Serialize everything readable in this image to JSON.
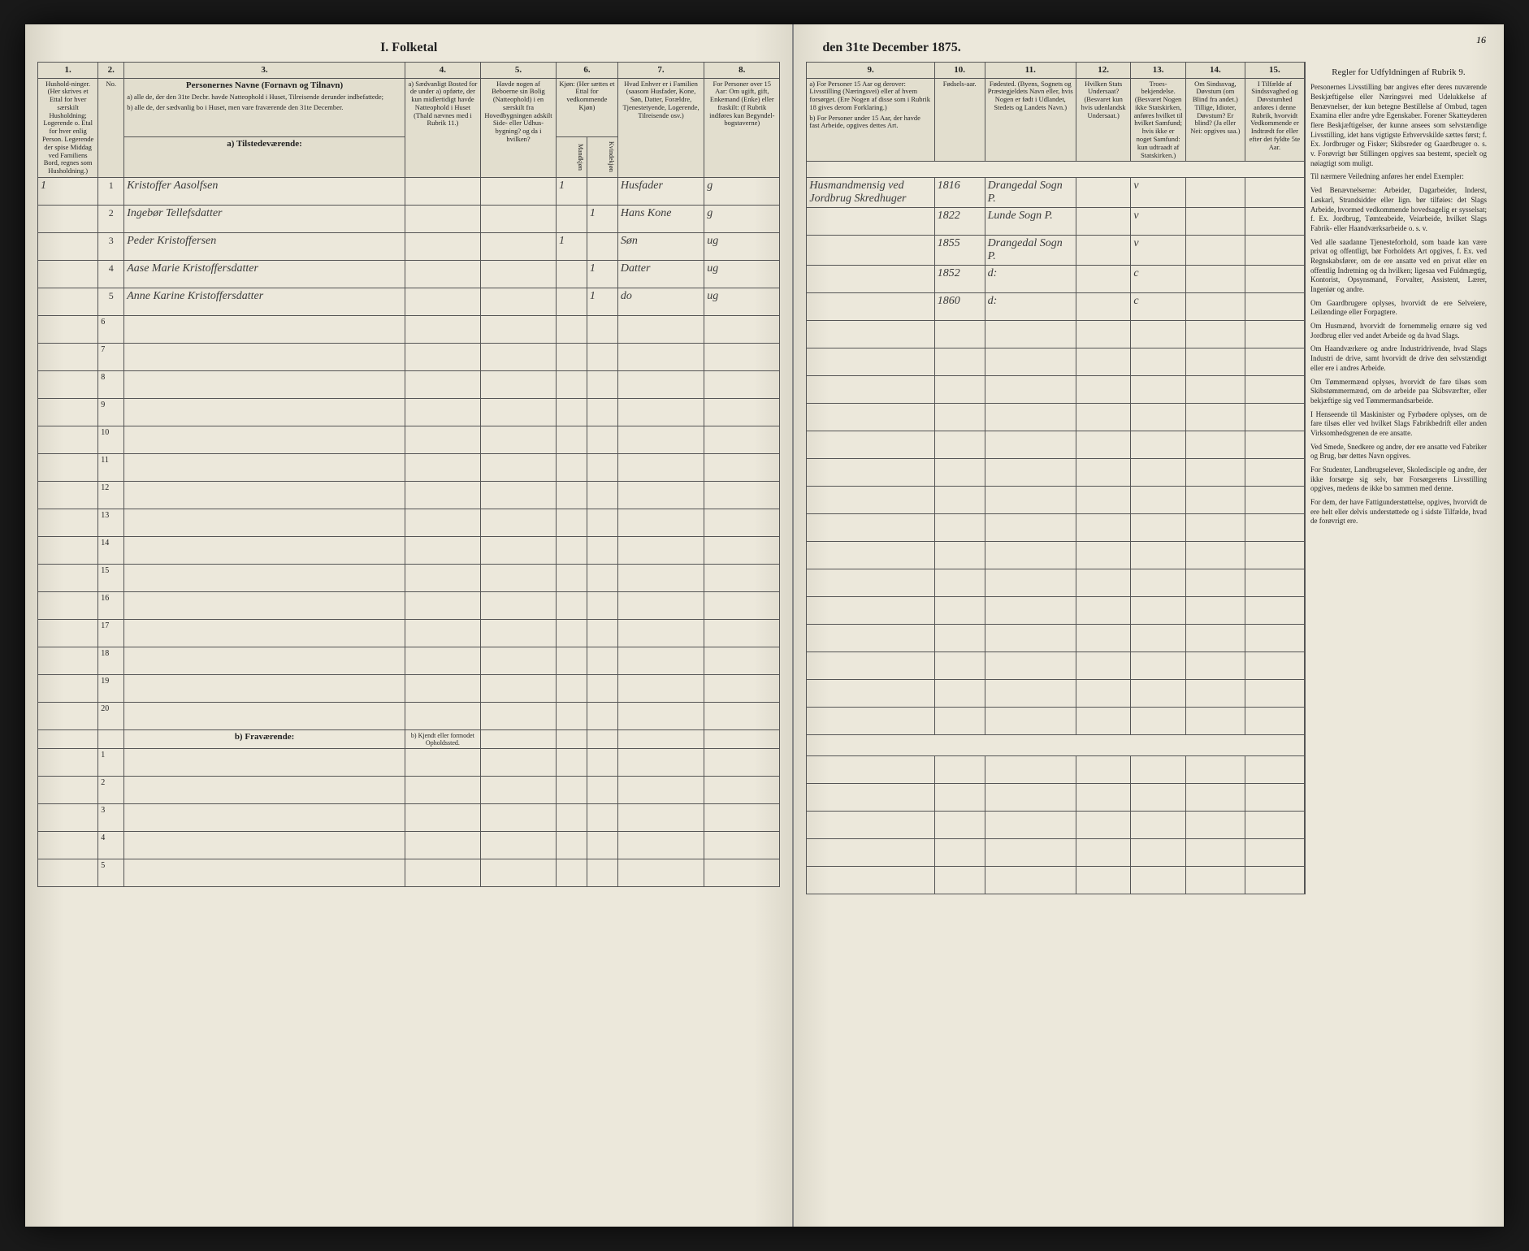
{
  "document": {
    "title_left": "I. Folketal",
    "title_right": "den 31te December 1875.",
    "page_number_right": "16"
  },
  "left_columns": {
    "nums": [
      "1.",
      "2.",
      "3.",
      "4.",
      "5.",
      "6.",
      "7.",
      "8."
    ],
    "c1": "Hushold-ninger. (Her skrives et Ettal for hver særskilt Husholdning; Logerende o. Etal for hver enlig Person. Legerende der spise Middag ved Familiens Bord, regnes som Husholdning.)",
    "c2": "No.",
    "c3_title": "Personernes Navne (Fornavn og Tilnavn)",
    "c3_a": "a) alle de, der den 31te Decbr. havde Natteophold i Huset, Tilreisende derunder indbefattede;",
    "c3_b": "b) alle de, der sædvanlig bo i Huset, men vare fraværende den 31te December.",
    "c4": "a) Sædvanligt Bosted for de under a) opførte, der kun midlertidigt havde Natteophold i Huset (Thald nævnes med i Rubrik 11.)",
    "c5": "Havde nogen af Beboerne sin Bolig (Natteophold) i en særskilt fra Hovedbygningen adskilt Side- eller Udhus-bygning? og da i hvilken?",
    "c6": "Kjøn: (Her sættes et Ettal for vedkommende Kjøn)",
    "c6m": "Mandkjøn",
    "c6k": "Kvindekjøn",
    "c7": "Hvad Enhver er i Familien (saasom Husfader, Kone, Søn, Datter, Forældre, Tjenestetyende, Logerende, Tilreisende osv.)",
    "c8": "For Personer over 15 Aar: Om ugift, gift, Enkemand (Enke) eller fraskilt: (f Rubrik indføres kun Begyndel-bogstaverne)"
  },
  "right_columns": {
    "nums": [
      "9.",
      "10.",
      "11.",
      "12.",
      "13.",
      "14.",
      "15."
    ],
    "c9_a": "a) For Personer 15 Aar og derover: Livsstilling (Næringsvei) eller af hvem forsørget. (Ere Nogen af disse som i Rubrik 18 gives derom Forklaring.)",
    "c9_b": "b) For Personer under 15 Aar, der havde fast Arbeide, opgives dettes Art.",
    "c10": "Fødsels-aar.",
    "c11": "Fødested. (Byens, Sognets og Præstegjeldets Navn eller, hvis Nogen er født i Udlandet, Stedets og Landets Navn.)",
    "c12": "Hvilken Stats Undersaat? (Besvaret kun hvis udenlandsk Undersaat.)",
    "c13": "Troes-bekjendelse. (Besvaret Nogen ikke Statskirken, anføres hvilket til hvilket Samfund; hvis ikke er noget Samfund: kun udtraadt af Statskirken.)",
    "c14": "Om Sindssvag, Døvstum (om Blind fra andet.) Tillige, Idioter, Døvstum? Er blind? (Ja eller Nei: opgives saa.)",
    "c15": "I Tilfælde af Sindssvaghed og Døvstumhed anføres i denne Rubrik, hvorvidt Vedkommende er Indtrædt for eller efter det fyldte 5te Aar."
  },
  "instructions": {
    "header": "Regler for Udfyldningen af Rubrik 9.",
    "paragraphs": [
      "Personernes Livsstilling bør angives efter deres nuværende Beskjæftigelse eller Næringsvei med Udelukkelse af Benævnelser, der kun betegne Bestillelse af Ombud, tagen Examina eller andre ydre Egenskaber. Forener Skatteyderen flere Beskjæftigelser, der kunne ansees som selvstændige Livsstilling, idet hans vigtigste Erhvervskilde sættes først; f. Ex. Jordbruger og Fisker; Skibsreder og Gaardbruger o. s. v. Forøvrigt bør Stillingen opgives saa bestemt, specielt og nøiagtigt som muligt.",
      "Til nærmere Veiledning anføres her endel Exempler:",
      "Ved Benævnelserne: Arbeider, Dagarbeider, Inderst, Løskarl, Strandsidder eller lign. bør tilføies: det Slags Arbeide, hvormed vedkommende hovedsagelig er sysselsat; f. Ex. Jordbrug, Tømteabeide, Veiarbeide, hvilket Slags Fabrik- eller Haandværksarbeide o. s. v.",
      "Ved alle saadanne Tjenesteforhold, som baade kan være privat og offentligt, bør Forholdets Art opgives, f. Ex. ved Regnskabsfører, om de ere ansatte ved en privat eller en offentlig Indretning og da hvilken; ligesaa ved Fuldmægtig, Kontorist, Opsynsmand, Forvalter, Assistent, Lærer, Ingeniør og andre.",
      "Om Gaardbrugere oplyses, hvorvidt de ere Selveiere, Leilændinge eller Forpagtere.",
      "Om Husmænd, hvorvidt de fornemmelig ernære sig ved Jordbrug eller ved andet Arbeide og da hvad Slags.",
      "Om Haandværkere og andre Industridrivende, hvad Slags Industri de drive, samt hvorvidt de drive den selvstændigt eller ere i andres Arbeide.",
      "Om Tømmermænd oplyses, hvorvidt de fare tilsøs som Skibstømmermænd, om de arbeide paa Skibsværfter, eller bekjæftige sig ved Tømmermandsarbeide.",
      "I Henseende til Maskinister og Fyrbødere oplyses, om de fare tilsøs eller ved hvilket Slags Fabrikbedrift eller anden Virksomhedsgrenen de ere ansatte.",
      "Ved Smede, Snedkere og andre, der ere ansatte ved Fabriker og Brug, bør dettes Navn opgives.",
      "For Studenter, Landbrugselever, Skoledisciple og andre, der ikke forsørge sig selv, bør Forsørgerens Livsstilling opgives, medens de ikke bo sammen med denne.",
      "For dem, der have Fattigunderstøttelse, opgives, hvorvidt de ere helt eller delvis understøttede og i sidste Tilfælde, hvad de forøvrigt ere."
    ]
  },
  "sections": {
    "present": "a) Tilstedeværende:",
    "absent": "b) Fraværende:",
    "absent_col4": "b) Kjendt eller formodet Opholdssted."
  },
  "rows": [
    {
      "n": "1",
      "h": "1",
      "name": "Kristoffer Aasolfsen",
      "c4": "",
      "c5": "",
      "m": "1",
      "k": "",
      "rel": "Husfader",
      "ms": "g",
      "occ": "Husmandmensig ved Jordbrug Skredhuger",
      "yr": "1816",
      "bp": "Drangedal Sogn P.",
      "st": "",
      "rel2": "v",
      "d": "",
      "e": ""
    },
    {
      "n": "",
      "h": "2",
      "name": "Ingebør Tellefsdatter",
      "c4": "",
      "c5": "",
      "m": "",
      "k": "1",
      "rel": "Hans Kone",
      "ms": "g",
      "occ": "",
      "yr": "1822",
      "bp": "Lunde Sogn P.",
      "st": "",
      "rel2": "v",
      "d": "",
      "e": ""
    },
    {
      "n": "",
      "h": "3",
      "name": "Peder Kristoffersen",
      "c4": "",
      "c5": "",
      "m": "1",
      "k": "",
      "rel": "Søn",
      "ms": "ug",
      "occ": "",
      "yr": "1855",
      "bp": "Drangedal Sogn P.",
      "st": "",
      "rel2": "v",
      "d": "",
      "e": ""
    },
    {
      "n": "",
      "h": "4",
      "name": "Aase Marie Kristoffersdatter",
      "c4": "",
      "c5": "",
      "m": "",
      "k": "1",
      "rel": "Datter",
      "ms": "ug",
      "occ": "",
      "yr": "1852",
      "bp": "d:",
      "st": "",
      "rel2": "c",
      "d": "",
      "e": ""
    },
    {
      "n": "",
      "h": "5",
      "name": "Anne Karine Kristoffersdatter",
      "c4": "",
      "c5": "",
      "m": "",
      "k": "1",
      "rel": "do",
      "ms": "ug",
      "occ": "",
      "yr": "1860",
      "bp": "d:",
      "st": "",
      "rel2": "c",
      "d": "",
      "e": ""
    }
  ]
}
